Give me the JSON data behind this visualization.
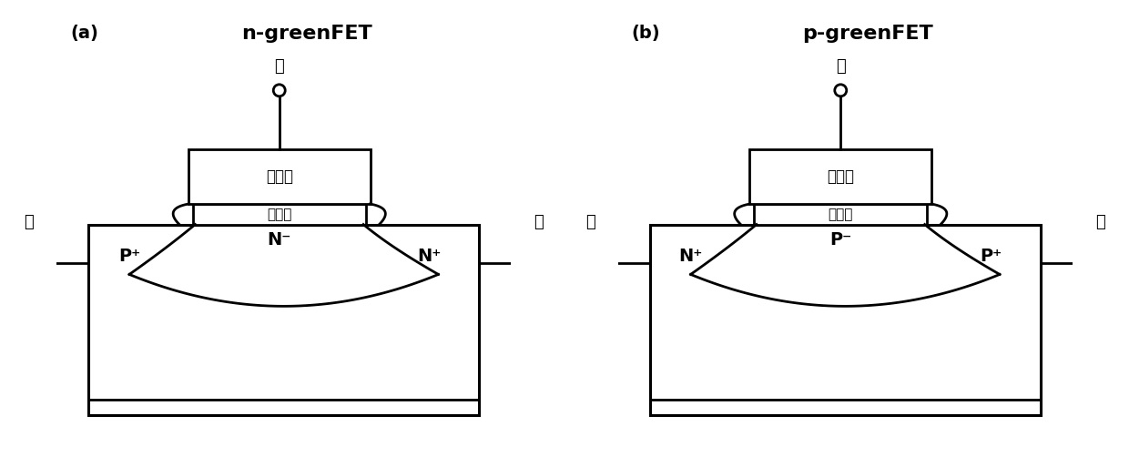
{
  "fig_width": 12.4,
  "fig_height": 5.13,
  "dpi": 100,
  "background": "#ffffff",
  "title_a": "n-greenFET",
  "title_b": "p-greenFET",
  "label_a": "(a)",
  "label_b": "(b)",
  "chinese_gate": "栊",
  "chinese_source": "源",
  "chinese_drain": "漏",
  "chinese_gate_electrode": "栊电极",
  "chinese_gate_dielectric": "栊介质",
  "panel_a": {
    "source_label": "P⁺",
    "channel_label": "N⁻",
    "drain_label": "N⁺"
  },
  "panel_b": {
    "source_label": "N⁺",
    "channel_label": "P⁻",
    "drain_label": "P⁺"
  }
}
